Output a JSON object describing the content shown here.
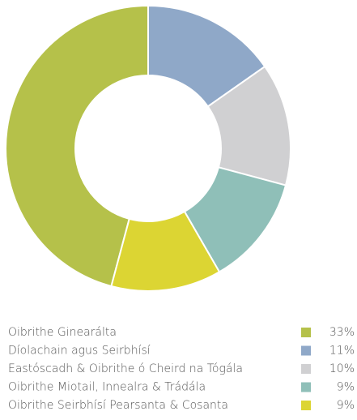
{
  "chart_data": {
    "type": "donut",
    "categories": [
      "Oibrithe Ginearálta",
      "Díolachain agus Seirbhísí",
      "Eastóscadh & Oibrithe ó Cheird na Tógála",
      "Oibrithe Miotail, Innealra & Trádála",
      "Oibrithe Seirbhísí Pearsanta & Cosanta"
    ],
    "values": [
      33,
      11,
      10,
      9,
      9
    ],
    "value_labels": [
      "33%",
      "11%",
      "10%",
      "9%",
      "9%"
    ],
    "colors": [
      "#b5c14a",
      "#8fa8c8",
      "#d0d0d2",
      "#8fbfb8",
      "#dcd533"
    ]
  }
}
